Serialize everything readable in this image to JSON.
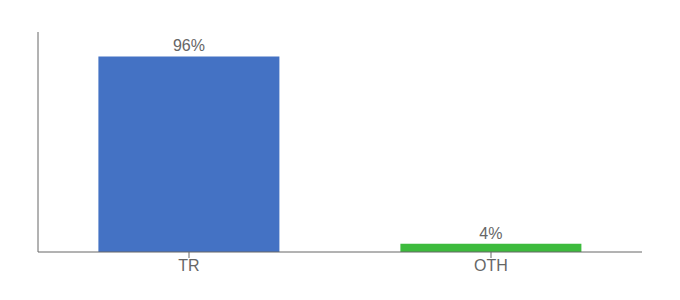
{
  "chart_data": {
    "type": "bar",
    "categories": [
      "TR",
      "OTH"
    ],
    "values": [
      96,
      4
    ],
    "value_labels": [
      "96%",
      "4%"
    ],
    "colors": [
      "#4472c4",
      "#3dbb3d"
    ],
    "ylim": [
      0,
      108
    ],
    "data_labels": true,
    "tick_labels": "x"
  }
}
